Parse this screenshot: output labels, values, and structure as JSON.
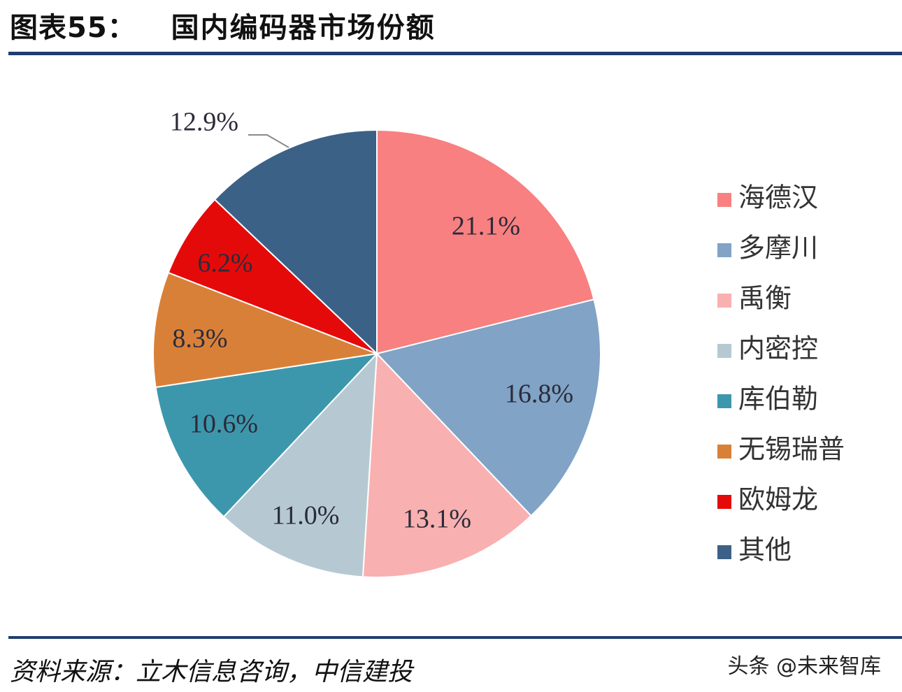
{
  "header": {
    "prefix": "图表55：",
    "title": "国内编码器市场份额"
  },
  "footer": {
    "source": "资料来源：立木信息咨询，中信建投",
    "watermark": "头条 @未来智库"
  },
  "chart_data": {
    "type": "pie",
    "title": "国内编码器市场份额",
    "start_angle_deg": 0,
    "direction": "clockwise",
    "legend_position": "right",
    "slices": [
      {
        "label": "海德汉",
        "value": 21.1,
        "display": "21.1%",
        "color": "#f88080"
      },
      {
        "label": "多摩川",
        "value": 16.8,
        "display": "16.8%",
        "color": "#80a3c6"
      },
      {
        "label": "禹衡",
        "value": 13.1,
        "display": "13.1%",
        "color": "#f8b0b0"
      },
      {
        "label": "内密控",
        "value": 11.0,
        "display": "11.0%",
        "color": "#b6c9d2"
      },
      {
        "label": "库伯勒",
        "value": 10.6,
        "display": "10.6%",
        "color": "#3d97ac"
      },
      {
        "label": "无锡瑞普",
        "value": 8.3,
        "display": "8.3%",
        "color": "#d98038"
      },
      {
        "label": "欧姆龙",
        "value": 6.2,
        "display": "6.2%",
        "color": "#e50a0a"
      },
      {
        "label": "其他",
        "value": 12.9,
        "display": "12.9%",
        "color": "#3c6186"
      }
    ]
  }
}
